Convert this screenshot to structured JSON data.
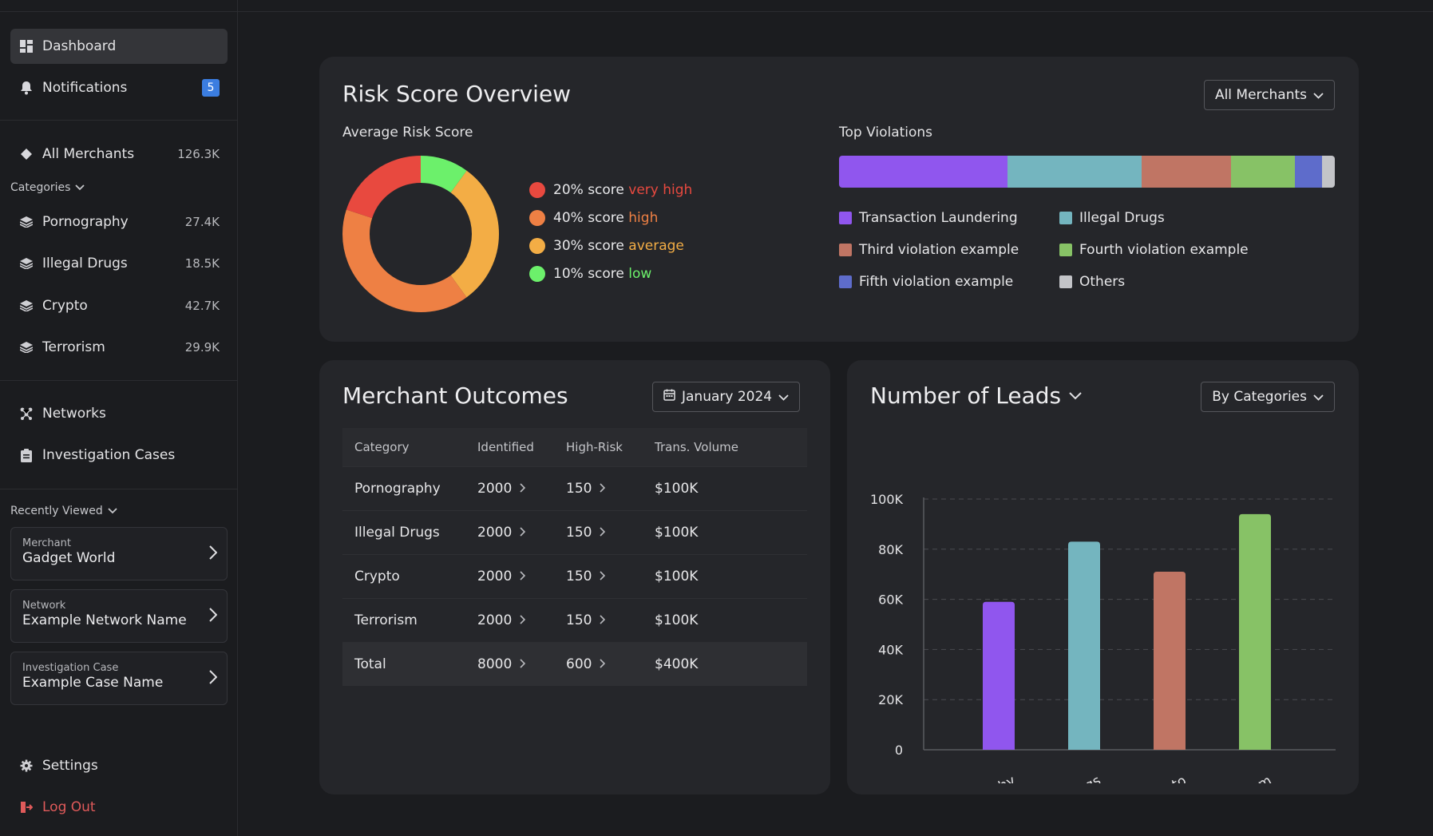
{
  "sidebar": {
    "nav": [
      {
        "label": "Dashboard",
        "icon": "dashboard-icon"
      },
      {
        "label": "Notifications",
        "badge": "5",
        "icon": "bell-icon"
      }
    ],
    "all_merchants": {
      "label": "All Merchants",
      "count": "126.3K"
    },
    "categories_title": "Categories",
    "categories": [
      {
        "label": "Pornography",
        "count": "27.4K"
      },
      {
        "label": "Illegal Drugs",
        "count": "18.5K"
      },
      {
        "label": "Crypto",
        "count": "42.7K"
      },
      {
        "label": "Terrorism",
        "count": "29.9K"
      }
    ],
    "networks": "Networks",
    "investigation_cases": "Investigation Cases",
    "recently_viewed_title": "Recently Viewed",
    "recent": [
      {
        "kind": "Merchant",
        "name": "Gadget World"
      },
      {
        "kind": "Network",
        "name": "Example Network Name"
      },
      {
        "kind": "Investigation Case",
        "name": "Example Case Name"
      }
    ],
    "settings": "Settings",
    "logout": "Log Out"
  },
  "risk": {
    "title": "Risk Score Overview",
    "filter": "All Merchants",
    "avg_title": "Average Risk Score",
    "donut": [
      {
        "prefix": "20% score",
        "word": "very high",
        "value": 20,
        "color": "#e8493f"
      },
      {
        "prefix": "40% score",
        "word": "high",
        "value": 40,
        "color": "#ee8044"
      },
      {
        "prefix": "30% score",
        "word": "average",
        "value": 30,
        "color": "#f3ad45"
      },
      {
        "prefix": "10% score",
        "word": "low",
        "value": 10,
        "color": "#6cf06b"
      }
    ],
    "violations_title": "Top Violations",
    "violations": [
      {
        "label": "Transaction Laundering",
        "share": 34,
        "color": "#9056ee"
      },
      {
        "label": "Illegal Drugs",
        "share": 27,
        "color": "#74b5bf"
      },
      {
        "label": "Third violation example",
        "share": 18,
        "color": "#c07564"
      },
      {
        "label": "Fourth violation example",
        "share": 13,
        "color": "#87c266"
      },
      {
        "label": "Fifth violation example",
        "share": 5.5,
        "color": "#5e6ccb"
      },
      {
        "label": "Others",
        "share": 2.5,
        "color": "#c3c4c8"
      }
    ]
  },
  "outcomes": {
    "title": "Merchant Outcomes",
    "date": "January 2024",
    "headers": [
      "Category",
      "Identified",
      "High-Risk",
      "Trans. Volume"
    ],
    "rows": [
      [
        "Pornography",
        "2000",
        "150",
        "$100K"
      ],
      [
        "Illegal Drugs",
        "2000",
        "150",
        "$100K"
      ],
      [
        "Crypto",
        "2000",
        "150",
        "$100K"
      ],
      [
        "Terrorism",
        "2000",
        "150",
        "$100K"
      ]
    ],
    "total": [
      "Total",
      "8000",
      "600",
      "$400K"
    ]
  },
  "leads": {
    "title": "Number of Leads",
    "filter": "By Categories"
  },
  "chart_data": {
    "type": "bar",
    "categories": [
      "Pornography",
      "Illegal Drugs",
      "Crypto",
      "Terrorism"
    ],
    "values": [
      59000,
      83000,
      71000,
      94000
    ],
    "colors": [
      "#9056ee",
      "#74b5bf",
      "#c07564",
      "#87c266"
    ],
    "ytick_labels": [
      "0",
      "20K",
      "40K",
      "60K",
      "80K",
      "100K"
    ],
    "yticks": [
      0,
      20000,
      40000,
      60000,
      80000,
      100000
    ],
    "ylim": [
      0,
      100000
    ],
    "grid": true
  }
}
